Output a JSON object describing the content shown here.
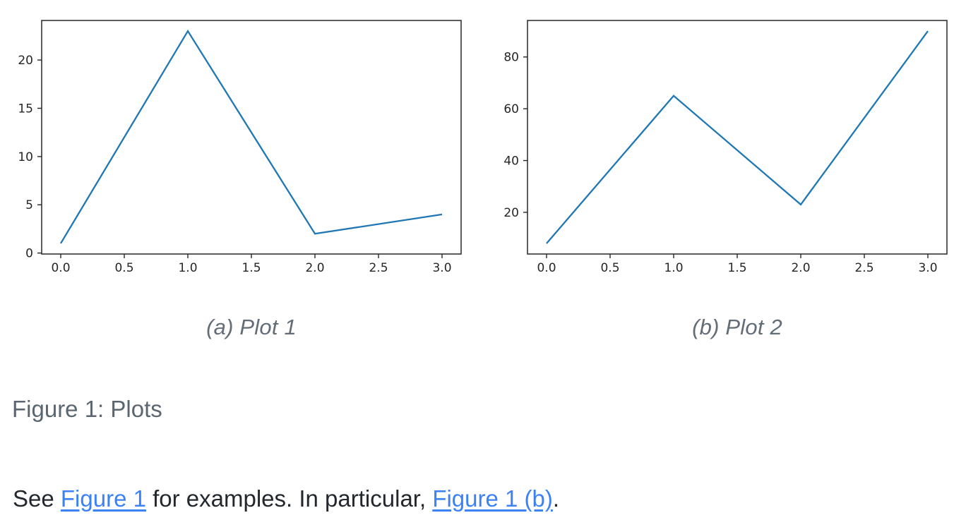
{
  "figure": {
    "caption": "Figure 1: Plots"
  },
  "paragraph": {
    "text_before": "See ",
    "link_1": "Figure 1",
    "text_middle": " for examples. In particular, ",
    "link_2": "Figure 1 (b)",
    "text_after": ".",
    "link_color": "#3b82f6",
    "text_color": "#23282e"
  },
  "chart_data": [
    {
      "type": "line",
      "caption": "(a) Plot 1",
      "title": "",
      "xlabel": "",
      "ylabel": "",
      "x": [
        0,
        1,
        2,
        3
      ],
      "y": [
        1,
        23,
        2,
        4
      ],
      "x_ticks": [
        "0.0",
        "0.5",
        "1.0",
        "1.5",
        "2.0",
        "2.5",
        "3.0"
      ],
      "y_ticks": [
        0,
        5,
        10,
        15,
        20
      ],
      "xlim": [
        -0.15,
        3.15
      ],
      "ylim": [
        -0.1,
        24.1
      ],
      "grid": false,
      "legend": false,
      "line_color": "#1f77b4",
      "frame_color": "#262626"
    },
    {
      "type": "line",
      "caption": "(b) Plot 2",
      "title": "",
      "xlabel": "",
      "ylabel": "",
      "x": [
        0,
        1,
        2,
        3
      ],
      "y": [
        8,
        65,
        23,
        90
      ],
      "x_ticks": [
        "0.0",
        "0.5",
        "1.0",
        "1.5",
        "2.0",
        "2.5",
        "3.0"
      ],
      "y_ticks": [
        20,
        40,
        60,
        80
      ],
      "xlim": [
        -0.15,
        3.15
      ],
      "ylim": [
        3.9,
        94.1
      ],
      "grid": false,
      "legend": false,
      "line_color": "#1f77b4",
      "frame_color": "#262626"
    }
  ]
}
